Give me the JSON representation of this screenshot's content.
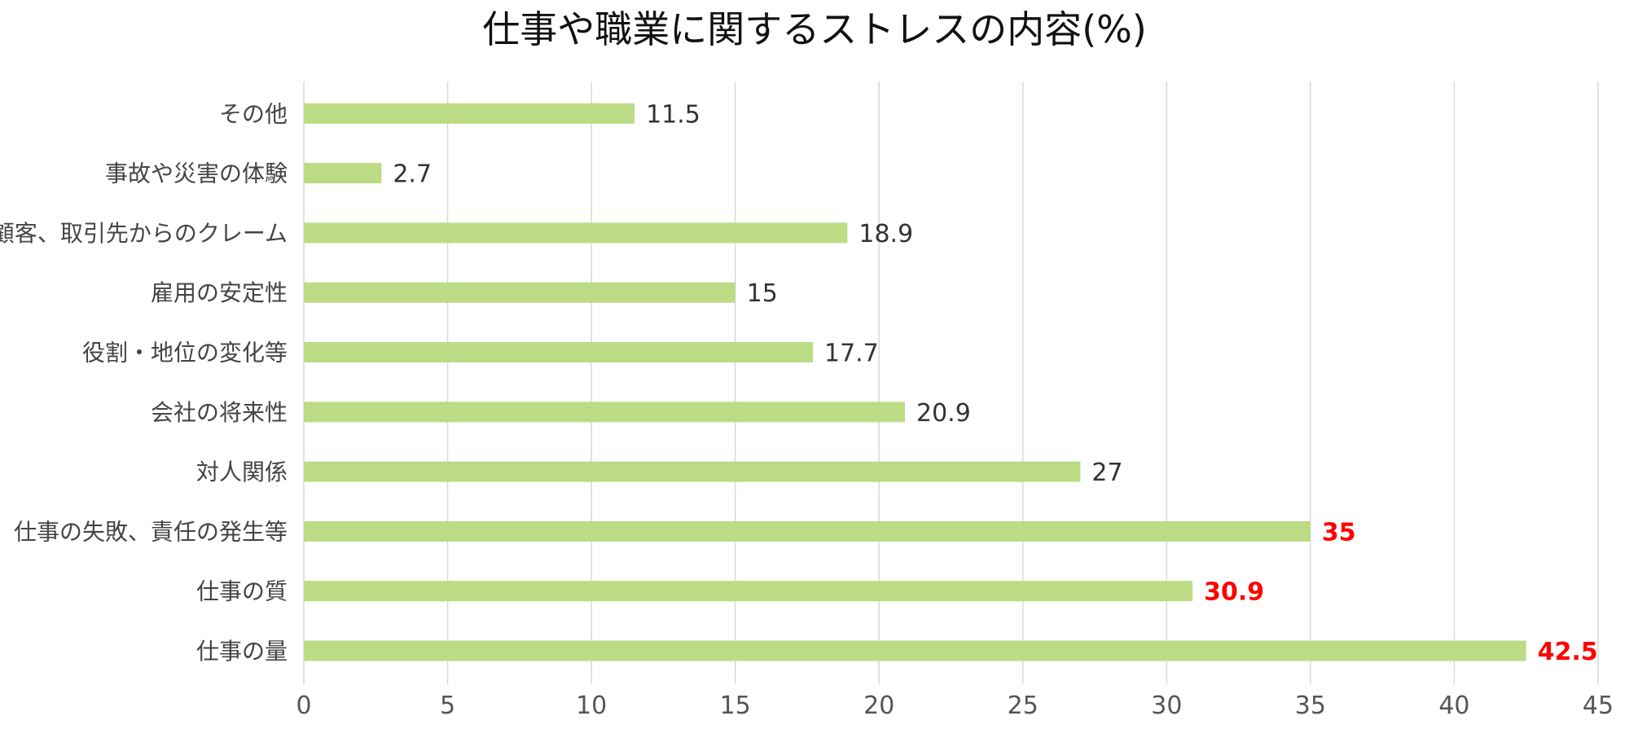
{
  "chart_data": {
    "type": "bar",
    "orientation": "horizontal",
    "title": "仕事や職業に関するストレスの内容(%)",
    "categories": [
      "仕事の量",
      "仕事の質",
      "仕事の失敗、責任の発生等",
      "対人関係",
      "会社の将来性",
      "役割・地位の変化等",
      "雇用の安定性",
      "顧客、取引先からのクレーム",
      "事故や災害の体験",
      "その他"
    ],
    "values": [
      42.5,
      30.9,
      35,
      27,
      20.9,
      17.7,
      15,
      18.9,
      2.7,
      11.5
    ],
    "data_labels": [
      "42.5",
      "30.9",
      "35",
      "27",
      "20.9",
      "17.7",
      "15",
      "18.9",
      "2.7",
      "11.5"
    ],
    "highlighted": [
      true,
      true,
      true,
      false,
      false,
      false,
      false,
      false,
      false,
      false
    ],
    "xlim": [
      0,
      45
    ],
    "xticks": [
      0,
      5,
      10,
      15,
      20,
      25,
      30,
      35,
      40,
      45
    ],
    "grid": "vertical",
    "legend": "none",
    "colors": {
      "bar": "#bcdb85",
      "grid": "#d9d9d9",
      "label": "#333333",
      "highlight_label": "#ff0000",
      "category_label": "#444444",
      "tick_label": "#555555",
      "title": "#111111"
    }
  }
}
